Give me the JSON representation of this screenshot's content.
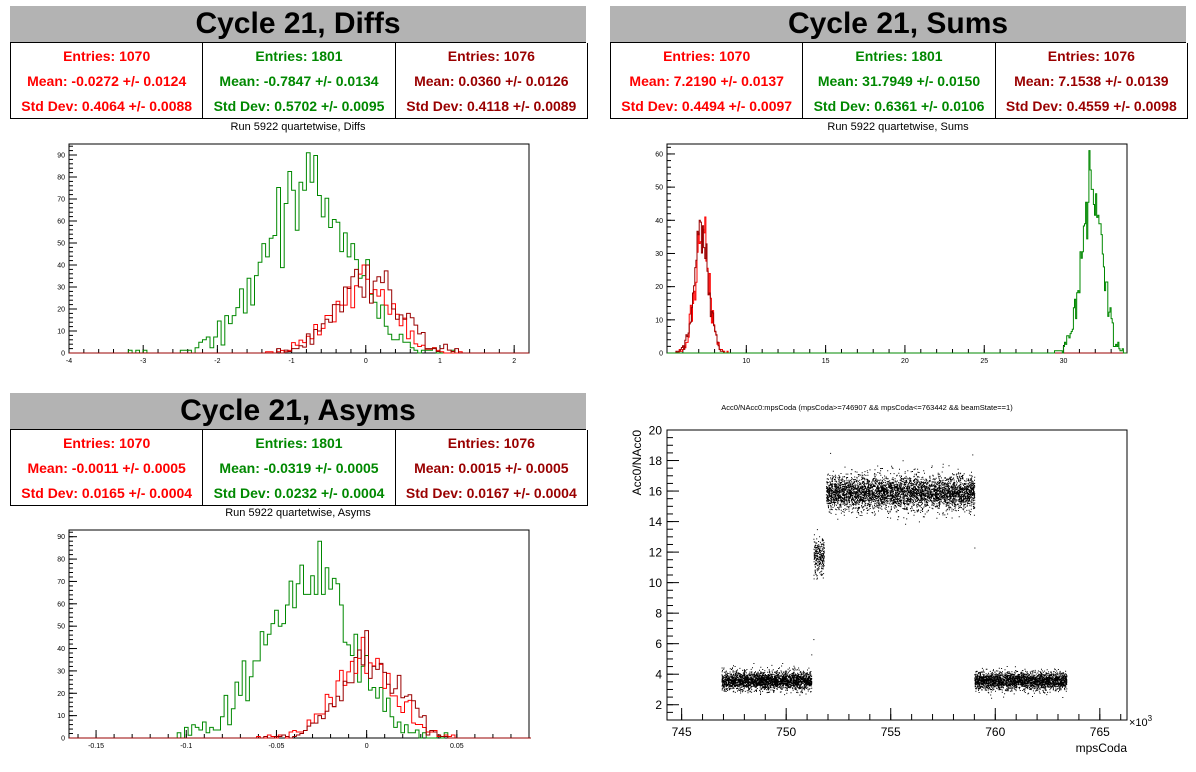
{
  "colors": {
    "red": "#ff0000",
    "green": "#008800",
    "darkred": "#990000",
    "title_bg": "#b3b3b3"
  },
  "panels": {
    "diffs": {
      "title": "Cycle 21, Diffs",
      "run_label": "Run 5922 quartetwise, Diffs",
      "stats": [
        {
          "entries": "Entries: 1070",
          "mean": "Mean: -0.0272 +/- 0.0124",
          "std": "Std Dev: 0.4064 +/- 0.0088"
        },
        {
          "entries": "Entries: 1801",
          "mean": "Mean: -0.7847 +/- 0.0134",
          "std": "Std Dev: 0.5702 +/- 0.0095"
        },
        {
          "entries": "Entries: 1076",
          "mean": "Mean: 0.0360 +/- 0.0126",
          "std": "Std Dev: 0.4118 +/- 0.0089"
        }
      ]
    },
    "sums": {
      "title": "Cycle 21, Sums",
      "run_label": "Run 5922 quartetwise, Sums",
      "stats": [
        {
          "entries": "Entries: 1070",
          "mean": "Mean: 7.2190 +/- 0.0137",
          "std": "Std Dev: 0.4494 +/- 0.0097"
        },
        {
          "entries": "Entries: 1801",
          "mean": "Mean: 31.7949 +/- 0.0150",
          "std": "Std Dev: 0.6361 +/- 0.0106"
        },
        {
          "entries": "Entries: 1076",
          "mean": "Mean: 7.1538 +/- 0.0139",
          "std": "Std Dev: 0.4559 +/- 0.0098"
        }
      ]
    },
    "asyms": {
      "title": "Cycle 21, Asyms",
      "run_label": "Run 5922 quartetwise, Asyms",
      "stats": [
        {
          "entries": "Entries: 1070",
          "mean": "Mean: -0.0011 +/- 0.0005",
          "std": "Std Dev: 0.0165 +/- 0.0004"
        },
        {
          "entries": "Entries: 1801",
          "mean": "Mean: -0.0319 +/- 0.0005",
          "std": "Std Dev: 0.0232 +/- 0.0004"
        },
        {
          "entries": "Entries: 1076",
          "mean": "Mean: 0.0015 +/- 0.0005",
          "std": "Std Dev: 0.0167 +/- 0.0004"
        }
      ]
    }
  },
  "chart_data": [
    {
      "type": "histogram",
      "id": "diffs",
      "xlim": [
        -4,
        2.2
      ],
      "ylim": [
        0,
        95
      ],
      "xticks": [
        -4,
        -3,
        -2,
        -1,
        0,
        1,
        2
      ],
      "yticks": [
        0,
        10,
        20,
        30,
        40,
        50,
        60,
        70,
        80,
        90
      ],
      "bin_width": 0.05,
      "series": [
        {
          "color": "green",
          "entries": 1801,
          "mean": -0.7847,
          "std": 0.5702,
          "peak": 91
        },
        {
          "color": "red",
          "entries": 1070,
          "mean": -0.0272,
          "std": 0.4064,
          "peak": 40
        },
        {
          "color": "darkred",
          "entries": 1076,
          "mean": 0.036,
          "std": 0.4118,
          "peak": 40
        }
      ]
    },
    {
      "type": "histogram",
      "id": "sums",
      "xlim": [
        5,
        34
      ],
      "ylim": [
        0,
        63
      ],
      "xticks": [
        10,
        15,
        20,
        25,
        30
      ],
      "yticks": [
        0,
        10,
        20,
        30,
        40,
        50,
        60
      ],
      "bin_width": 0.07,
      "series": [
        {
          "color": "red",
          "entries": 1070,
          "mean": 7.219,
          "std": 0.4494,
          "peak": 41
        },
        {
          "color": "darkred",
          "entries": 1076,
          "mean": 7.1538,
          "std": 0.4559,
          "peak": 40
        },
        {
          "color": "green",
          "entries": 1801,
          "mean": 31.7949,
          "std": 0.6361,
          "peak": 61
        }
      ]
    },
    {
      "type": "histogram",
      "id": "asyms",
      "xlim": [
        -0.165,
        0.09
      ],
      "ylim": [
        0,
        93
      ],
      "xticks": [
        -0.15,
        -0.1,
        -0.05,
        0,
        0.05
      ],
      "xtick_labels": [
        "-0.15",
        "-0.1",
        "-0.05",
        "0",
        "0.05"
      ],
      "yticks": [
        0,
        10,
        20,
        30,
        40,
        50,
        60,
        70,
        80,
        90
      ],
      "bin_width": 0.002,
      "series": [
        {
          "color": "green",
          "entries": 1801,
          "mean": -0.0319,
          "std": 0.0232,
          "peak": 88
        },
        {
          "color": "red",
          "entries": 1070,
          "mean": -0.0011,
          "std": 0.0165,
          "peak": 45
        },
        {
          "color": "darkred",
          "entries": 1076,
          "mean": 0.0015,
          "std": 0.0167,
          "peak": 48
        }
      ]
    },
    {
      "type": "scatter",
      "id": "scatter",
      "title": "Acc0/NAcc0:mpsCoda (mpsCoda>=746907 && mpsCoda<=763442 && beamState==1)",
      "xlabel": "mpsCoda",
      "ylabel": "Acc0/NAcc0",
      "x_exponent": "×10",
      "x_exponent_power": "3",
      "xlim": [
        744.3,
        766.3
      ],
      "ylim": [
        1,
        20
      ],
      "xticks": [
        745,
        750,
        755,
        760,
        765
      ],
      "yticks": [
        2,
        4,
        6,
        8,
        10,
        12,
        14,
        16,
        18,
        20
      ],
      "clusters": [
        {
          "x": [
            746.9,
            751.2
          ],
          "y_mean": 3.6,
          "y_sd": 0.3,
          "n": 2600
        },
        {
          "x": [
            751.3,
            751.8
          ],
          "y_mean": 11.7,
          "y_sd": 0.6,
          "n": 260
        },
        {
          "x": [
            751.9,
            759.0
          ],
          "y_mean": 15.9,
          "y_sd": 0.55,
          "n": 4300
        },
        {
          "x": [
            759.0,
            763.4
          ],
          "y_mean": 3.6,
          "y_sd": 0.3,
          "n": 2600
        }
      ]
    }
  ]
}
